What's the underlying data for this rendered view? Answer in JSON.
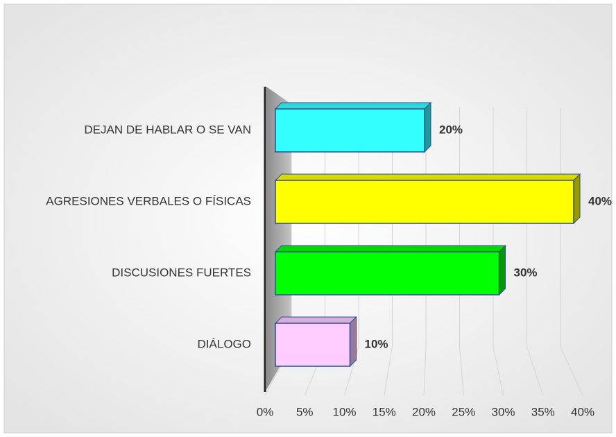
{
  "chart_data": {
    "type": "bar3d",
    "categories": [
      "DEJAN DE HABLAR O SE VAN",
      "AGRESIONES VERBALES O FÍSICAS",
      "DISCUSIONES FUERTES",
      "DIÁLOGO"
    ],
    "series": [
      {
        "colors": [
          "#33ffff",
          "#ffff00",
          "#00ff00",
          "#ffccff"
        ],
        "values": [
          20,
          40,
          30,
          10
        ],
        "value_labels": [
          "20%",
          "40%",
          "30%",
          "10%"
        ]
      }
    ],
    "xlim": [
      0,
      40
    ],
    "xticks": [
      {
        "value": 0,
        "label": "0%"
      },
      {
        "value": 5,
        "label": "5%"
      },
      {
        "value": 10,
        "label": "10%"
      },
      {
        "value": 15,
        "label": "15%"
      },
      {
        "value": 20,
        "label": "20%"
      },
      {
        "value": 25,
        "label": "25%"
      },
      {
        "value": 30,
        "label": "30%"
      },
      {
        "value": 35,
        "label": "35%"
      },
      {
        "value": 40,
        "label": "40%"
      }
    ],
    "grid": true
  }
}
